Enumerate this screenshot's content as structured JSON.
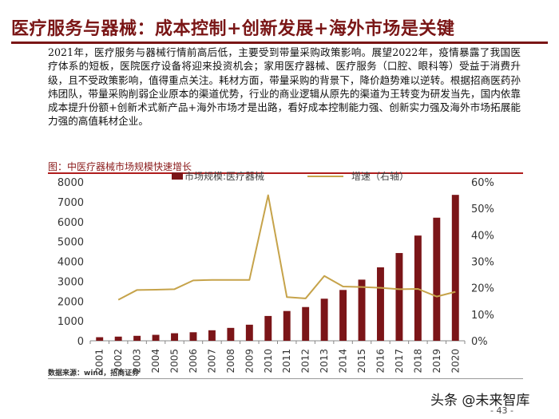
{
  "header": {
    "title": "医疗服务与器械：成本控制+创新发展+海外市场是关键"
  },
  "body": {
    "paragraph": "2021年，医疗服务与器械行情前高后低，主要受到带量采购政策影响。展望2022年，疫情暴露了我国医疗体系的短板，医院医疗设备将迎来投资机会；家用医疗器械、医疗服务（口腔、眼科等）受益于消费升级，且不受政策影响，值得重点关注。耗材方面，带量采购的背景下，降价趋势难以逆转。根据招商医药孙炜团队，带量采购削弱企业原本的渠道优势，行业的商业逻辑从原先的渠道为王转变为研发当先，国内依靠成本提升份额+创新术式新产品+海外市场才是出路，看好成本控制能力强、创新实力强及海外市场拓展能力强的高值耗材企业。"
  },
  "chart": {
    "caption": "图：中医疗器械市场规模快速增长"
  },
  "chart_data": {
    "type": "bar",
    "categories": [
      "2001",
      "2002",
      "2003",
      "2004",
      "2005",
      "2006",
      "2007",
      "2008",
      "2009",
      "2010",
      "2011",
      "2012",
      "2013",
      "2014",
      "2015",
      "2016",
      "2017",
      "2018",
      "2019",
      "2020"
    ],
    "series": [
      {
        "name": "市场规模:医疗器械",
        "type": "bar",
        "axis": "left",
        "values": [
          180,
          210,
          250,
          300,
          380,
          430,
          530,
          650,
          810,
          1250,
          1500,
          1700,
          2120,
          2560,
          3080,
          3700,
          4420,
          5300,
          6200,
          7350
        ]
      },
      {
        "name": "增速（右轴）",
        "type": "line",
        "axis": "right",
        "values": [
          null,
          15.5,
          19.2,
          19.3,
          19.5,
          22.8,
          23.0,
          23.0,
          23.0,
          55.0,
          16.5,
          16.0,
          24.5,
          20.5,
          20.3,
          20.0,
          19.5,
          19.6,
          16.7,
          18.5
        ]
      }
    ],
    "y_left": {
      "min": 0,
      "max": 8000,
      "ticks": [
        "0",
        "1000",
        "2000",
        "3000",
        "4000",
        "5000",
        "6000",
        "7000",
        "8000"
      ]
    },
    "y_right": {
      "min": 0,
      "max": 60,
      "ticks": [
        "0%",
        "10%",
        "20%",
        "30%",
        "40%",
        "50%",
        "60%"
      ]
    },
    "grid": false,
    "legend_position": "top",
    "colors": {
      "bar": "#7b1518",
      "line": "#c6a34a"
    }
  },
  "footer": {
    "source": "数据来源：wind，招商证券",
    "watermark": "头条 @未来智库",
    "page_number": "- 43 -"
  }
}
